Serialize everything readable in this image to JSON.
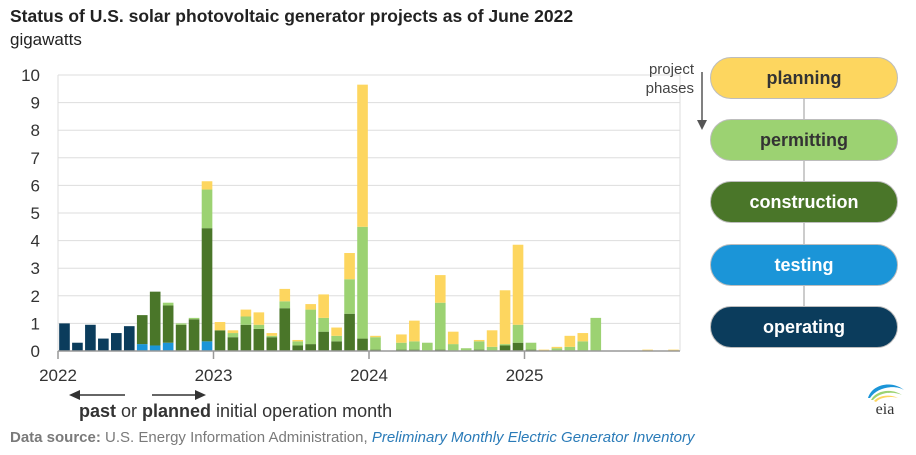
{
  "title": "Status of U.S. solar photovoltaic generator projects as of June 2022",
  "unit": "gigawatts",
  "arrow_label_line1": "project",
  "arrow_label_line2": "phases",
  "footnote": {
    "part1": "past",
    "part2": " or ",
    "part3": "planned",
    "part4": " initial operation month"
  },
  "source": {
    "label": "Data source:",
    "org": " U.S. Energy Information Administration, ",
    "publication": "Preliminary Monthly Electric Generator Inventory"
  },
  "logo_text": "eia",
  "colors": {
    "planning": "#fdd65f",
    "permitting": "#9cd272",
    "construction": "#4a7629",
    "testing": "#1b95d8",
    "operating": "#0b3c5c",
    "grid": "#dddddd",
    "axis": "#999999"
  },
  "legend": [
    {
      "label": "planning",
      "key": "planning",
      "text_color": "#333333"
    },
    {
      "label": "permitting",
      "key": "permitting",
      "text_color": "#333333"
    },
    {
      "label": "construction",
      "key": "construction",
      "text_color": "#ffffff"
    },
    {
      "label": "testing",
      "key": "testing",
      "text_color": "#ffffff"
    },
    {
      "label": "operating",
      "key": "operating",
      "text_color": "#ffffff"
    }
  ],
  "chart_data": {
    "type": "bar",
    "stacked": true,
    "title": "Status of U.S. solar photovoltaic generator projects as of June 2022",
    "ylabel": "gigawatts",
    "ylim": [
      0,
      10
    ],
    "yticks": [
      0,
      1,
      2,
      3,
      4,
      5,
      6,
      7,
      8,
      9,
      10
    ],
    "xticks": [
      {
        "label": "2022",
        "index": 0
      },
      {
        "label": "2023",
        "index": 12
      },
      {
        "label": "2024",
        "index": 24
      },
      {
        "label": "2025",
        "index": 36
      }
    ],
    "grid": true,
    "categories": [
      "2022-01",
      "2022-02",
      "2022-03",
      "2022-04",
      "2022-05",
      "2022-06",
      "2022-07",
      "2022-08",
      "2022-09",
      "2022-10",
      "2022-11",
      "2022-12",
      "2023-01",
      "2023-02",
      "2023-03",
      "2023-04",
      "2023-05",
      "2023-06",
      "2023-07",
      "2023-08",
      "2023-09",
      "2023-10",
      "2023-11",
      "2023-12",
      "2024-01",
      "2024-02",
      "2024-03",
      "2024-04",
      "2024-05",
      "2024-06",
      "2024-07",
      "2024-08",
      "2024-09",
      "2024-10",
      "2024-11",
      "2024-12",
      "2025-01",
      "2025-02",
      "2025-03",
      "2025-04",
      "2025-05",
      "2025-06",
      "2025-07",
      "2025-08",
      "2025-09",
      "2025-10",
      "2025-11",
      "2025-12"
    ],
    "series": [
      {
        "name": "operating",
        "key": "operating",
        "values": [
          1.0,
          0.3,
          0.95,
          0.45,
          0.65,
          0.9,
          0,
          0,
          0,
          0,
          0,
          0,
          0,
          0,
          0,
          0,
          0,
          0,
          0,
          0,
          0,
          0,
          0,
          0,
          0,
          0,
          0,
          0,
          0,
          0,
          0,
          0,
          0,
          0,
          0,
          0,
          0,
          0,
          0,
          0,
          0,
          0,
          0,
          0,
          0,
          0,
          0,
          0
        ]
      },
      {
        "name": "testing",
        "key": "testing",
        "values": [
          0,
          0,
          0,
          0,
          0,
          0,
          0.25,
          0.2,
          0.3,
          0,
          0,
          0.35,
          0,
          0,
          0,
          0,
          0,
          0,
          0,
          0,
          0,
          0,
          0,
          0,
          0,
          0,
          0,
          0,
          0,
          0,
          0,
          0,
          0,
          0,
          0,
          0,
          0,
          0,
          0,
          0,
          0,
          0,
          0,
          0,
          0,
          0,
          0,
          0
        ]
      },
      {
        "name": "construction",
        "key": "construction",
        "values": [
          0,
          0,
          0,
          0,
          0,
          0,
          1.05,
          1.95,
          1.35,
          0.95,
          1.15,
          4.1,
          0.75,
          0.5,
          0.95,
          0.8,
          0.5,
          1.55,
          0.2,
          0.25,
          0.7,
          0.35,
          1.35,
          0.45,
          0.05,
          0,
          0.05,
          0.05,
          0,
          0.05,
          0,
          0,
          0.05,
          0,
          0.2,
          0.3,
          0.05,
          0,
          0,
          0,
          0,
          0,
          0,
          0,
          0,
          0,
          0,
          0
        ]
      },
      {
        "name": "permitting",
        "key": "permitting",
        "values": [
          0,
          0,
          0,
          0,
          0,
          0,
          0,
          0,
          0.1,
          0.05,
          0.05,
          1.4,
          0,
          0.15,
          0.3,
          0.15,
          0.05,
          0.25,
          0.15,
          1.25,
          0.5,
          0.2,
          1.25,
          4.05,
          0.45,
          0,
          0.25,
          0.3,
          0.3,
          1.7,
          0.25,
          0.1,
          0.3,
          0.15,
          0.05,
          0.65,
          0.25,
          0,
          0.1,
          0.15,
          0.35,
          1.2,
          0,
          0,
          0,
          0,
          0,
          0
        ]
      },
      {
        "name": "planning",
        "key": "planning",
        "values": [
          0,
          0,
          0,
          0,
          0,
          0,
          0,
          0,
          0,
          0,
          0,
          0.3,
          0.3,
          0.1,
          0.25,
          0.45,
          0.1,
          0.45,
          0.05,
          0.2,
          0.85,
          0.3,
          0.95,
          5.15,
          0.05,
          0,
          0.3,
          0.75,
          0,
          1.0,
          0.45,
          0,
          0.05,
          0.6,
          1.95,
          2.9,
          0,
          0.05,
          0.05,
          0.4,
          0.3,
          0,
          0,
          0,
          0,
          0.05,
          0,
          0.05
        ]
      }
    ]
  }
}
